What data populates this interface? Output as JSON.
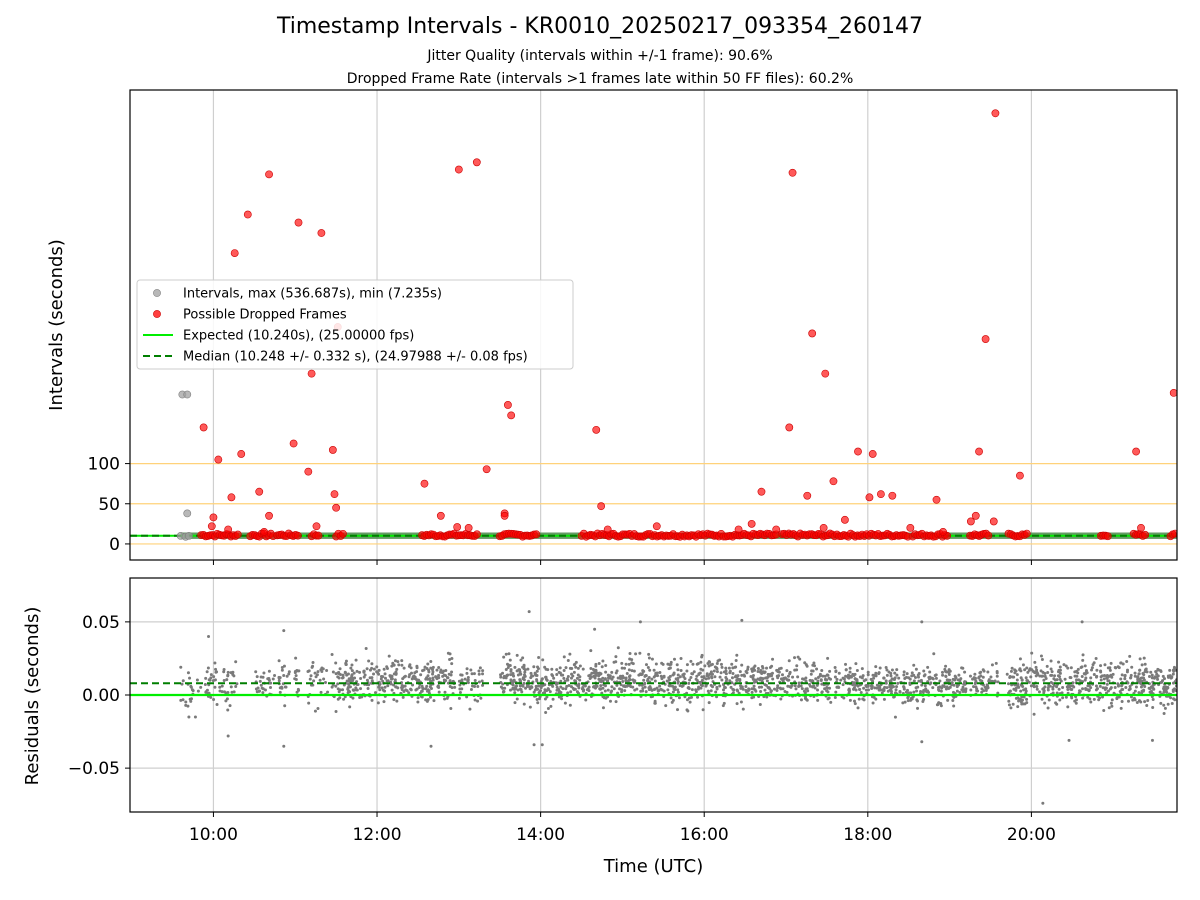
{
  "figure": {
    "title": "Timestamp Intervals - KR0010_20250217_093354_260147",
    "subtitle_1": "Jitter Quality (intervals within +/-1 frame): 90.6%",
    "subtitle_2": "Dropped Frame Rate (intervals >1 frames late within 50 FF files): 60.2%"
  },
  "chart_data": [
    {
      "type": "scatter",
      "panel": "top",
      "ylabel": "Intervals (seconds)",
      "y_tick_labels": [
        "0",
        "50",
        "100"
      ],
      "y_ticks": [
        0,
        50,
        100
      ],
      "ylim": [
        -20,
        565
      ],
      "xlim": [
        8.98,
        21.78
      ],
      "grid": true,
      "reference_lines": [
        0,
        50,
        100
      ],
      "reference_color": "#ffd27a",
      "legend_position": "center-left",
      "legend": [
        {
          "label": "Intervals, max (536.687s), min (7.235s)",
          "marker": "dot",
          "color": "#a0a0a0"
        },
        {
          "label": "Possible Dropped Frames",
          "marker": "dot",
          "color": "#ff0000"
        },
        {
          "label": "Expected (10.240s), (25.00000 fps)",
          "marker": "line",
          "color": "#00ee00"
        },
        {
          "label": "Median (10.248 +/- 0.332 s), (24.97988 +/- 0.08 fps)",
          "marker": "dashed",
          "color": "#007f00"
        }
      ],
      "expected_value": 10.24,
      "median_value": 10.248,
      "series": [
        {
          "name": "Intervals, max (536.687s), min (7.235s)",
          "color": "#a0a0a0",
          "points": [
            [
              9.62,
              186
            ],
            [
              9.68,
              186
            ],
            [
              9.68,
              38
            ],
            [
              9.6,
              10
            ],
            [
              9.66,
              9
            ],
            [
              9.7,
              10
            ]
          ]
        },
        {
          "name": "Possible Dropped Frames",
          "color": "#ff0000",
          "points": [
            [
              9.88,
              145
            ],
            [
              9.98,
              22
            ],
            [
              10.0,
              33
            ],
            [
              10.06,
              105
            ],
            [
              10.18,
              18
            ],
            [
              10.22,
              58
            ],
            [
              10.26,
              362
            ],
            [
              10.34,
              112
            ],
            [
              10.42,
              410
            ],
            [
              10.56,
              65
            ],
            [
              10.62,
              15
            ],
            [
              10.68,
              35
            ],
            [
              10.68,
              460
            ],
            [
              10.98,
              125
            ],
            [
              11.04,
              400
            ],
            [
              11.16,
              90
            ],
            [
              11.2,
              212
            ],
            [
              11.26,
              22
            ],
            [
              11.32,
              387
            ],
            [
              11.46,
              117
            ],
            [
              11.48,
              62
            ],
            [
              11.5,
              45
            ],
            [
              11.52,
              270
            ],
            [
              12.58,
              75
            ],
            [
              12.78,
              35
            ],
            [
              12.98,
              21
            ],
            [
              13.0,
              466
            ],
            [
              13.12,
              20
            ],
            [
              13.22,
              475
            ],
            [
              13.34,
              93
            ],
            [
              13.56,
              38
            ],
            [
              13.56,
              35
            ],
            [
              13.6,
              173
            ],
            [
              13.64,
              160
            ],
            [
              14.68,
              142
            ],
            [
              14.74,
              47
            ],
            [
              14.82,
              18
            ],
            [
              15.42,
              22
            ],
            [
              16.42,
              18
            ],
            [
              16.58,
              25
            ],
            [
              16.7,
              65
            ],
            [
              16.88,
              18
            ],
            [
              17.04,
              145
            ],
            [
              17.08,
              462
            ],
            [
              17.26,
              60
            ],
            [
              17.32,
              262
            ],
            [
              17.46,
              20
            ],
            [
              17.48,
              212
            ],
            [
              17.58,
              78
            ],
            [
              17.72,
              30
            ],
            [
              17.88,
              115
            ],
            [
              18.02,
              58
            ],
            [
              18.06,
              112
            ],
            [
              18.16,
              62
            ],
            [
              18.3,
              60
            ],
            [
              18.52,
              20
            ],
            [
              18.84,
              55
            ],
            [
              18.92,
              15
            ],
            [
              19.26,
              28
            ],
            [
              19.32,
              35
            ],
            [
              19.36,
              115
            ],
            [
              19.44,
              255
            ],
            [
              19.54,
              28
            ],
            [
              19.56,
              536
            ],
            [
              19.86,
              85
            ],
            [
              21.28,
              115
            ],
            [
              21.34,
              20
            ],
            [
              21.74,
              188
            ]
          ]
        }
      ]
    },
    {
      "type": "scatter",
      "panel": "bottom",
      "ylabel": "Residuals (seconds)",
      "xlabel": "Time (UTC)",
      "y_tick_labels": [
        "0.05",
        "0.00",
        "−0.05"
      ],
      "y_ticks": [
        0.05,
        0.0,
        -0.05
      ],
      "ylim": [
        -0.08,
        0.08
      ],
      "xlim": [
        8.98,
        21.78
      ],
      "x_ticks": [
        10,
        12,
        14,
        16,
        18,
        20
      ],
      "x_tick_labels": [
        "10:00",
        "12:00",
        "14:00",
        "16:00",
        "18:00",
        "20:00"
      ],
      "grid": true,
      "expected_value": 0.0,
      "median_value": 0.008,
      "series": [
        {
          "name": "",
          "color": "#7a7a7a",
          "points": [
            [
              9.7,
              -0.015
            ],
            [
              9.78,
              -0.015
            ],
            [
              9.94,
              0.04
            ],
            [
              10.18,
              -0.028
            ],
            [
              10.86,
              -0.035
            ],
            [
              10.86,
              0.044
            ],
            [
              12.66,
              -0.035
            ],
            [
              13.86,
              0.057
            ],
            [
              13.92,
              -0.034
            ],
            [
              14.02,
              -0.034
            ],
            [
              14.66,
              0.045
            ],
            [
              15.22,
              0.05
            ],
            [
              16.46,
              0.051
            ],
            [
              18.66,
              0.05
            ],
            [
              18.66,
              -0.032
            ],
            [
              20.14,
              -0.074
            ],
            [
              20.46,
              -0.031
            ],
            [
              20.62,
              0.05
            ],
            [
              21.48,
              -0.031
            ]
          ],
          "bands": [
            {
              "from": 9.6,
              "to": 9.85,
              "center": 0.005,
              "spread": 0.016,
              "count": 22
            },
            {
              "from": 9.9,
              "to": 10.3,
              "center": 0.008,
              "spread": 0.02,
              "count": 55
            },
            {
              "from": 10.5,
              "to": 10.75,
              "center": 0.008,
              "spread": 0.018,
              "count": 30
            },
            {
              "from": 10.8,
              "to": 11.05,
              "center": 0.01,
              "spread": 0.02,
              "count": 35
            },
            {
              "from": 11.15,
              "to": 11.4,
              "center": 0.01,
              "spread": 0.02,
              "count": 30
            },
            {
              "from": 11.45,
              "to": 12.95,
              "center": 0.01,
              "spread": 0.022,
              "count": 340
            },
            {
              "from": 13.0,
              "to": 13.3,
              "center": 0.008,
              "spread": 0.02,
              "count": 45
            },
            {
              "from": 13.5,
              "to": 15.6,
              "center": 0.01,
              "spread": 0.022,
              "count": 520
            },
            {
              "from": 15.6,
              "to": 16.8,
              "center": 0.009,
              "spread": 0.022,
              "count": 290
            },
            {
              "from": 16.8,
              "to": 17.55,
              "center": 0.009,
              "spread": 0.02,
              "count": 160
            },
            {
              "from": 17.6,
              "to": 18.3,
              "center": 0.008,
              "spread": 0.02,
              "count": 160
            },
            {
              "from": 18.3,
              "to": 19.2,
              "center": 0.008,
              "spread": 0.02,
              "count": 200
            },
            {
              "from": 19.25,
              "to": 19.6,
              "center": 0.008,
              "spread": 0.018,
              "count": 60
            },
            {
              "from": 19.7,
              "to": 21.78,
              "center": 0.008,
              "spread": 0.022,
              "count": 500
            }
          ]
        }
      ]
    }
  ]
}
